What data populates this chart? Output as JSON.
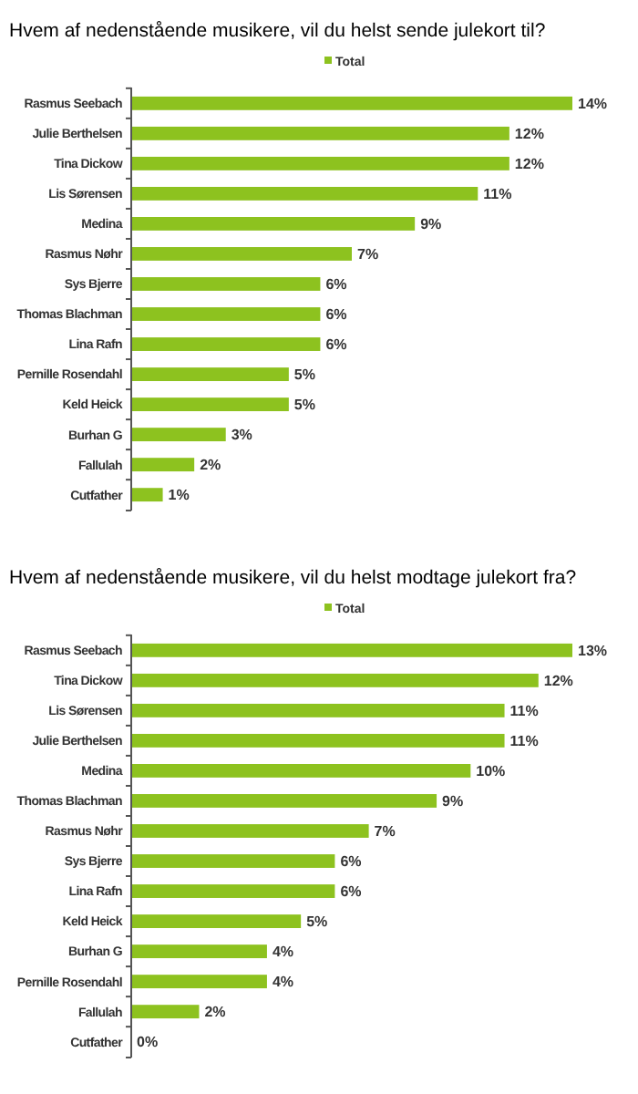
{
  "chart_data": [
    {
      "type": "bar",
      "orientation": "horizontal",
      "title": "Hvem af nedenstående musikere, vil du helst sende julekort til?",
      "categories": [
        "Rasmus Seebach",
        "Julie Berthelsen",
        "Tina Dickow",
        "Lis Sørensen",
        "Medina",
        "Rasmus Nøhr",
        "Sys Bjerre",
        "Thomas Blachman",
        "Lina Rafn",
        "Pernille Rosendahl",
        "Keld Heick",
        "Burhan G",
        "Fallulah",
        "Cutfather"
      ],
      "series": [
        {
          "name": "Total",
          "color": "#8dc21f",
          "values": [
            14,
            12,
            12,
            11,
            9,
            7,
            6,
            6,
            6,
            5,
            5,
            3,
            2,
            1
          ],
          "value_labels": [
            "14%",
            "12%",
            "12%",
            "11%",
            "9%",
            "7%",
            "6%",
            "6%",
            "6%",
            "5%",
            "5%",
            "3%",
            "2%",
            "1%"
          ]
        }
      ],
      "legend": "top"
    },
    {
      "type": "bar",
      "orientation": "horizontal",
      "title": "Hvem af nedenstående musikere, vil du helst modtage julekort fra?",
      "categories": [
        "Rasmus Seebach",
        "Tina Dickow",
        "Lis Sørensen",
        "Julie Berthelsen",
        "Medina",
        "Thomas Blachman",
        "Rasmus Nøhr",
        "Sys Bjerre",
        "Lina Rafn",
        "Keld Heick",
        "Burhan G",
        "Pernille Rosendahl",
        "Fallulah",
        "Cutfather"
      ],
      "series": [
        {
          "name": "Total",
          "color": "#8dc21f",
          "values": [
            13,
            12,
            11,
            11,
            10,
            9,
            7,
            6,
            6,
            5,
            4,
            4,
            2,
            0
          ],
          "value_labels": [
            "13%",
            "12%",
            "11%",
            "11%",
            "10%",
            "9%",
            "7%",
            "6%",
            "6%",
            "5%",
            "4%",
            "4%",
            "2%",
            "0%"
          ]
        }
      ],
      "legend": "top"
    }
  ]
}
